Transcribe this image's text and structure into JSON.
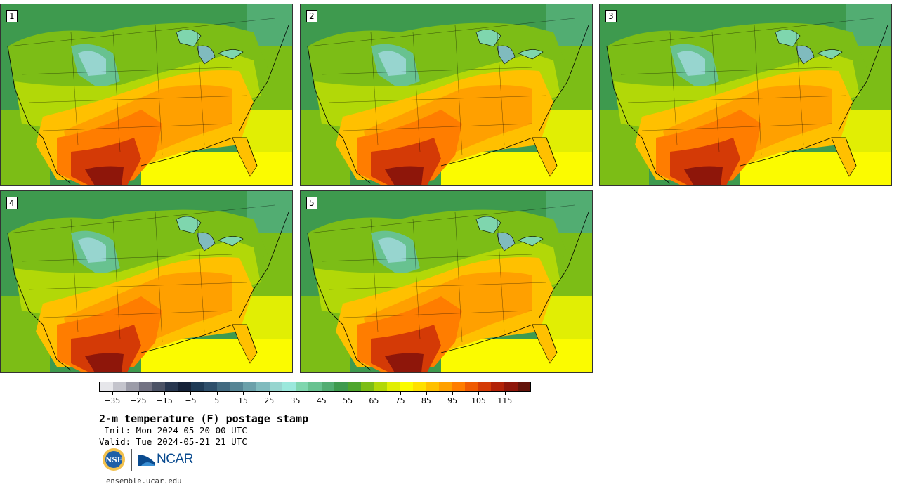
{
  "panels": [
    {
      "label": "1"
    },
    {
      "label": "2"
    },
    {
      "label": "3"
    },
    {
      "label": "4"
    },
    {
      "label": "5"
    }
  ],
  "colorbar": {
    "colors": [
      "#e6e6ea",
      "#c4c4cc",
      "#9c9ca8",
      "#727283",
      "#4c5366",
      "#283750",
      "#152238",
      "#1e3a55",
      "#2e4f6b",
      "#426a80",
      "#568595",
      "#6ba0aa",
      "#80bbbe",
      "#97d5cf",
      "#9be8dc",
      "#7fd6ae",
      "#68c290",
      "#52ad72",
      "#3e9a4e",
      "#4ea52c",
      "#7cbd16",
      "#b2d808",
      "#e1ee04",
      "#fbfb00",
      "#ffe000",
      "#ffc000",
      "#ffa000",
      "#ff7d00",
      "#ef5a02",
      "#d43a06",
      "#b22208",
      "#8e160a",
      "#63130a"
    ],
    "ticks": [
      "−35",
      "−25",
      "−15",
      "−5",
      "5",
      "15",
      "25",
      "35",
      "45",
      "55",
      "65",
      "75",
      "85",
      "95",
      "105",
      "115"
    ]
  },
  "title": "2-m temperature (F) postage stamp",
  "init": " Init: Mon 2024-05-20 00 UTC",
  "valid": "Valid: Tue 2024-05-21 21 UTC",
  "logos": {
    "nsf": "NSF",
    "ncar": "NCAR"
  },
  "url": "ensemble.ucar.edu"
}
